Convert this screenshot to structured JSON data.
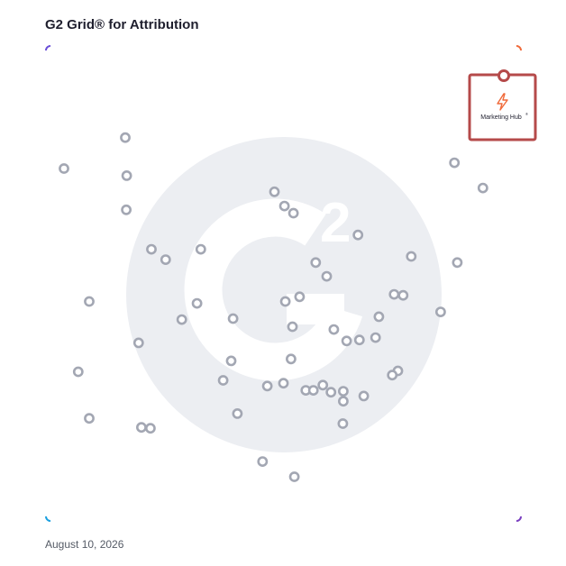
{
  "title": "G2 Grid® for Attribution",
  "date": "August 10, 2026",
  "colors": {
    "border_top_left": "#6a4fd8",
    "border_top_right": "#f06a3a",
    "border_bottom_left": "#1aa0e0",
    "border_bottom_right": "#7a3fc0",
    "axis_line": "#8c6fd0",
    "vertical_axis": "#a366c8",
    "horizontal_axis": "#5a4fc8",
    "point": "#a3a7b3",
    "watermark": "#eceef2",
    "callout": "#b54a4a",
    "product_logo": "#f06a3a"
  },
  "chart_data": {
    "type": "scatter",
    "title": "G2 Grid® for Attribution",
    "xlabel": "",
    "ylabel": "",
    "xlim": [
      0,
      100
    ],
    "ylim": [
      0,
      100
    ],
    "quadrant_split": {
      "x": 50,
      "y": 50
    },
    "grid": true,
    "points": [
      {
        "x": 3.8,
        "y": 74.2
      },
      {
        "x": 16.7,
        "y": 80.7
      },
      {
        "x": 17.0,
        "y": 72.7
      },
      {
        "x": 16.9,
        "y": 65.5
      },
      {
        "x": 22.2,
        "y": 57.2
      },
      {
        "x": 25.2,
        "y": 55.0
      },
      {
        "x": 32.6,
        "y": 57.2
      },
      {
        "x": 48.1,
        "y": 69.3
      },
      {
        "x": 50.2,
        "y": 66.3
      },
      {
        "x": 52.1,
        "y": 64.8
      },
      {
        "x": 65.7,
        "y": 60.2
      },
      {
        "x": 56.8,
        "y": 54.4
      },
      {
        "x": 59.1,
        "y": 51.5
      },
      {
        "x": 76.9,
        "y": 55.7
      },
      {
        "x": 86.6,
        "y": 54.4
      },
      {
        "x": 86.0,
        "y": 75.4
      },
      {
        "x": 92.0,
        "y": 70.1
      },
      {
        "x": 9.1,
        "y": 46.2
      },
      {
        "x": 31.8,
        "y": 45.8
      },
      {
        "x": 28.6,
        "y": 42.4
      },
      {
        "x": 39.4,
        "y": 42.6
      },
      {
        "x": 50.4,
        "y": 46.2
      },
      {
        "x": 53.4,
        "y": 47.2
      },
      {
        "x": 51.9,
        "y": 40.9
      },
      {
        "x": 73.3,
        "y": 47.7
      },
      {
        "x": 75.2,
        "y": 47.5
      },
      {
        "x": 70.1,
        "y": 43.0
      },
      {
        "x": 83.1,
        "y": 44.0
      },
      {
        "x": 69.4,
        "y": 38.6
      },
      {
        "x": 60.6,
        "y": 40.3
      },
      {
        "x": 63.3,
        "y": 37.9
      },
      {
        "x": 66.0,
        "y": 38.1
      },
      {
        "x": 19.5,
        "y": 37.5
      },
      {
        "x": 39.0,
        "y": 33.7
      },
      {
        "x": 51.6,
        "y": 34.1
      },
      {
        "x": 6.8,
        "y": 31.4
      },
      {
        "x": 37.3,
        "y": 29.6
      },
      {
        "x": 74.1,
        "y": 31.6
      },
      {
        "x": 72.9,
        "y": 30.7
      },
      {
        "x": 46.6,
        "y": 28.4
      },
      {
        "x": 50.0,
        "y": 29.0
      },
      {
        "x": 54.7,
        "y": 27.5
      },
      {
        "x": 56.3,
        "y": 27.5
      },
      {
        "x": 58.3,
        "y": 28.6
      },
      {
        "x": 60.0,
        "y": 27.1
      },
      {
        "x": 62.6,
        "y": 27.3
      },
      {
        "x": 62.6,
        "y": 25.2
      },
      {
        "x": 66.9,
        "y": 26.3
      },
      {
        "x": 9.1,
        "y": 21.6
      },
      {
        "x": 20.1,
        "y": 19.7
      },
      {
        "x": 22.0,
        "y": 19.5
      },
      {
        "x": 40.3,
        "y": 22.6
      },
      {
        "x": 62.5,
        "y": 20.5
      },
      {
        "x": 45.6,
        "y": 12.5
      },
      {
        "x": 52.3,
        "y": 9.3
      }
    ],
    "highlight": {
      "name": "Marketing Hub",
      "x": 96.2,
      "y": 94.1,
      "label": "Marketing Hub",
      "trademark": "®"
    }
  }
}
